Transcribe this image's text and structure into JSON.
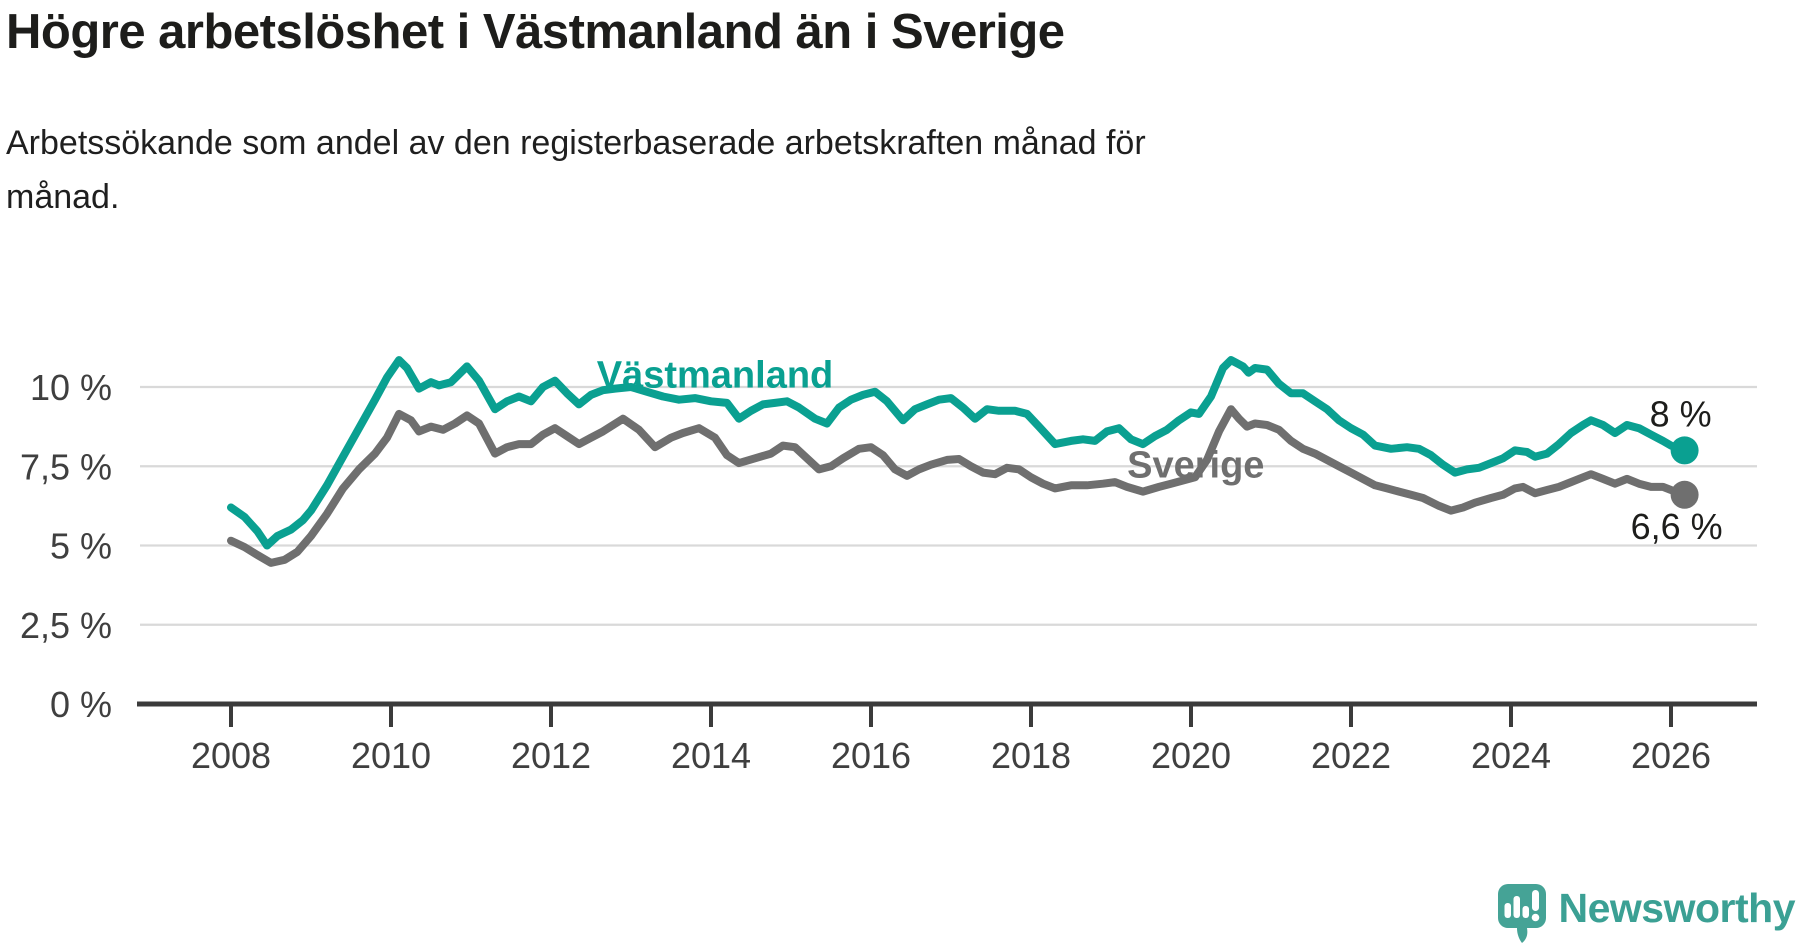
{
  "header": {
    "title": "Högre arbetslöshet i Västmanland än i Sverige",
    "subtitle_line1": "Arbetssökande som andel av den registerbaserade arbetskraften månad för",
    "subtitle_line2": "månad."
  },
  "footer": {
    "brand": "Newsworthy",
    "brand_color": "#3ba094"
  },
  "colors": {
    "vastmanland": "#0aa091",
    "sverige": "#6f6f6f",
    "gridline": "#d9d9d9",
    "axis": "#3b3b3b",
    "axis_text": "#3f3f3f",
    "annotation_text": "#1d1d1b"
  },
  "chart_data": {
    "type": "line",
    "title": "Högre arbetslöshet i Västmanland än i Sverige",
    "subtitle": "Arbetssökande som andel av den registerbaserade arbetskraften månad för månad.",
    "grid": "horizontal",
    "x_axis": {
      "range": [
        2008,
        2027.1
      ],
      "ticks": [
        2008,
        2010,
        2012,
        2014,
        2016,
        2018,
        2020,
        2022,
        2024,
        2026
      ]
    },
    "y_axis": {
      "unit": "%",
      "range": [
        0,
        11
      ],
      "ticks": [
        {
          "value": 0,
          "label": "0 %"
        },
        {
          "value": 2.5,
          "label": "2,5 %"
        },
        {
          "value": 5,
          "label": "5 %"
        },
        {
          "value": 7.5,
          "label": "7,5 %"
        },
        {
          "value": 10,
          "label": "10 %"
        }
      ]
    },
    "series_labels": [
      {
        "text": "Västmanland",
        "x": 2014.05,
        "y": 10.4,
        "color": "#0aa091"
      },
      {
        "text": "Sverige",
        "x": 2020.06,
        "y": 7.55,
        "color": "#6f6f6f"
      }
    ],
    "series": [
      {
        "name": "Västmanland",
        "color": "#0aa091",
        "end_label": "8 %",
        "end_value": 8.0,
        "points": [
          [
            2008.0,
            6.2
          ],
          [
            2008.17,
            5.9
          ],
          [
            2008.33,
            5.45
          ],
          [
            2008.45,
            5.0
          ],
          [
            2008.58,
            5.3
          ],
          [
            2008.75,
            5.5
          ],
          [
            2008.9,
            5.8
          ],
          [
            2009.0,
            6.1
          ],
          [
            2009.2,
            6.9
          ],
          [
            2009.4,
            7.8
          ],
          [
            2009.6,
            8.7
          ],
          [
            2009.8,
            9.6
          ],
          [
            2009.95,
            10.3
          ],
          [
            2010.1,
            10.85
          ],
          [
            2010.2,
            10.6
          ],
          [
            2010.35,
            9.95
          ],
          [
            2010.5,
            10.15
          ],
          [
            2010.6,
            10.05
          ],
          [
            2010.75,
            10.15
          ],
          [
            2010.95,
            10.65
          ],
          [
            2011.1,
            10.2
          ],
          [
            2011.3,
            9.3
          ],
          [
            2011.45,
            9.55
          ],
          [
            2011.6,
            9.7
          ],
          [
            2011.75,
            9.55
          ],
          [
            2011.9,
            10.0
          ],
          [
            2012.05,
            10.2
          ],
          [
            2012.2,
            9.8
          ],
          [
            2012.35,
            9.45
          ],
          [
            2012.5,
            9.75
          ],
          [
            2012.65,
            9.9
          ],
          [
            2012.8,
            9.95
          ],
          [
            2013.0,
            10.0
          ],
          [
            2013.2,
            9.85
          ],
          [
            2013.4,
            9.7
          ],
          [
            2013.6,
            9.6
          ],
          [
            2013.8,
            9.65
          ],
          [
            2014.0,
            9.55
          ],
          [
            2014.2,
            9.5
          ],
          [
            2014.35,
            9.0
          ],
          [
            2014.5,
            9.25
          ],
          [
            2014.65,
            9.45
          ],
          [
            2014.8,
            9.5
          ],
          [
            2014.95,
            9.55
          ],
          [
            2015.1,
            9.35
          ],
          [
            2015.3,
            9.0
          ],
          [
            2015.45,
            8.85
          ],
          [
            2015.6,
            9.35
          ],
          [
            2015.75,
            9.6
          ],
          [
            2015.9,
            9.75
          ],
          [
            2016.05,
            9.85
          ],
          [
            2016.2,
            9.55
          ],
          [
            2016.4,
            8.95
          ],
          [
            2016.55,
            9.3
          ],
          [
            2016.7,
            9.45
          ],
          [
            2016.85,
            9.6
          ],
          [
            2017.0,
            9.65
          ],
          [
            2017.15,
            9.35
          ],
          [
            2017.3,
            9.0
          ],
          [
            2017.45,
            9.3
          ],
          [
            2017.6,
            9.25
          ],
          [
            2017.8,
            9.25
          ],
          [
            2017.95,
            9.15
          ],
          [
            2018.1,
            8.75
          ],
          [
            2018.3,
            8.2
          ],
          [
            2018.5,
            8.3
          ],
          [
            2018.65,
            8.35
          ],
          [
            2018.8,
            8.3
          ],
          [
            2018.95,
            8.6
          ],
          [
            2019.1,
            8.7
          ],
          [
            2019.25,
            8.35
          ],
          [
            2019.4,
            8.2
          ],
          [
            2019.55,
            8.45
          ],
          [
            2019.7,
            8.65
          ],
          [
            2019.85,
            8.95
          ],
          [
            2020.0,
            9.2
          ],
          [
            2020.1,
            9.15
          ],
          [
            2020.25,
            9.7
          ],
          [
            2020.4,
            10.6
          ],
          [
            2020.5,
            10.85
          ],
          [
            2020.65,
            10.65
          ],
          [
            2020.72,
            10.45
          ],
          [
            2020.8,
            10.6
          ],
          [
            2020.95,
            10.55
          ],
          [
            2021.1,
            10.1
          ],
          [
            2021.25,
            9.8
          ],
          [
            2021.4,
            9.8
          ],
          [
            2021.55,
            9.55
          ],
          [
            2021.7,
            9.3
          ],
          [
            2021.85,
            8.95
          ],
          [
            2022.0,
            8.7
          ],
          [
            2022.15,
            8.5
          ],
          [
            2022.3,
            8.15
          ],
          [
            2022.5,
            8.05
          ],
          [
            2022.7,
            8.1
          ],
          [
            2022.85,
            8.05
          ],
          [
            2023.0,
            7.85
          ],
          [
            2023.15,
            7.55
          ],
          [
            2023.3,
            7.3
          ],
          [
            2023.45,
            7.4
          ],
          [
            2023.6,
            7.45
          ],
          [
            2023.75,
            7.6
          ],
          [
            2023.9,
            7.75
          ],
          [
            2024.05,
            8.0
          ],
          [
            2024.2,
            7.95
          ],
          [
            2024.3,
            7.8
          ],
          [
            2024.45,
            7.9
          ],
          [
            2024.6,
            8.2
          ],
          [
            2024.75,
            8.55
          ],
          [
            2024.9,
            8.8
          ],
          [
            2025.0,
            8.95
          ],
          [
            2025.15,
            8.8
          ],
          [
            2025.3,
            8.55
          ],
          [
            2025.45,
            8.8
          ],
          [
            2025.6,
            8.7
          ],
          [
            2025.75,
            8.5
          ],
          [
            2025.9,
            8.3
          ],
          [
            2026.0,
            8.15
          ],
          [
            2026.17,
            8.0
          ]
        ]
      },
      {
        "name": "Sverige",
        "color": "#6f6f6f",
        "end_label": "6,6 %",
        "end_value": 6.6,
        "points": [
          [
            2008.0,
            5.15
          ],
          [
            2008.17,
            4.95
          ],
          [
            2008.33,
            4.7
          ],
          [
            2008.5,
            4.45
          ],
          [
            2008.67,
            4.55
          ],
          [
            2008.83,
            4.8
          ],
          [
            2009.0,
            5.3
          ],
          [
            2009.2,
            6.0
          ],
          [
            2009.4,
            6.8
          ],
          [
            2009.6,
            7.4
          ],
          [
            2009.8,
            7.9
          ],
          [
            2009.95,
            8.4
          ],
          [
            2010.1,
            9.15
          ],
          [
            2010.25,
            8.95
          ],
          [
            2010.35,
            8.6
          ],
          [
            2010.5,
            8.75
          ],
          [
            2010.65,
            8.65
          ],
          [
            2010.8,
            8.85
          ],
          [
            2010.95,
            9.1
          ],
          [
            2011.1,
            8.85
          ],
          [
            2011.3,
            7.9
          ],
          [
            2011.45,
            8.1
          ],
          [
            2011.6,
            8.2
          ],
          [
            2011.75,
            8.2
          ],
          [
            2011.9,
            8.5
          ],
          [
            2012.05,
            8.7
          ],
          [
            2012.2,
            8.45
          ],
          [
            2012.35,
            8.2
          ],
          [
            2012.5,
            8.4
          ],
          [
            2012.65,
            8.6
          ],
          [
            2012.9,
            9.0
          ],
          [
            2013.1,
            8.65
          ],
          [
            2013.3,
            8.1
          ],
          [
            2013.5,
            8.4
          ],
          [
            2013.65,
            8.55
          ],
          [
            2013.85,
            8.7
          ],
          [
            2014.05,
            8.4
          ],
          [
            2014.2,
            7.85
          ],
          [
            2014.35,
            7.6
          ],
          [
            2014.55,
            7.75
          ],
          [
            2014.75,
            7.9
          ],
          [
            2014.9,
            8.15
          ],
          [
            2015.05,
            8.1
          ],
          [
            2015.2,
            7.75
          ],
          [
            2015.35,
            7.4
          ],
          [
            2015.5,
            7.5
          ],
          [
            2015.65,
            7.75
          ],
          [
            2015.85,
            8.05
          ],
          [
            2016.0,
            8.1
          ],
          [
            2016.15,
            7.85
          ],
          [
            2016.3,
            7.4
          ],
          [
            2016.45,
            7.2
          ],
          [
            2016.6,
            7.4
          ],
          [
            2016.75,
            7.55
          ],
          [
            2016.95,
            7.7
          ],
          [
            2017.1,
            7.73
          ],
          [
            2017.25,
            7.5
          ],
          [
            2017.4,
            7.3
          ],
          [
            2017.55,
            7.25
          ],
          [
            2017.7,
            7.45
          ],
          [
            2017.85,
            7.4
          ],
          [
            2018.0,
            7.15
          ],
          [
            2018.15,
            6.95
          ],
          [
            2018.3,
            6.8
          ],
          [
            2018.5,
            6.9
          ],
          [
            2018.7,
            6.9
          ],
          [
            2018.9,
            6.95
          ],
          [
            2019.05,
            7.0
          ],
          [
            2019.2,
            6.85
          ],
          [
            2019.4,
            6.7
          ],
          [
            2019.6,
            6.85
          ],
          [
            2019.75,
            6.95
          ],
          [
            2019.9,
            7.05
          ],
          [
            2020.05,
            7.15
          ],
          [
            2020.2,
            7.7
          ],
          [
            2020.35,
            8.6
          ],
          [
            2020.5,
            9.3
          ],
          [
            2020.6,
            9.0
          ],
          [
            2020.7,
            8.75
          ],
          [
            2020.8,
            8.85
          ],
          [
            2020.95,
            8.8
          ],
          [
            2021.1,
            8.65
          ],
          [
            2021.25,
            8.3
          ],
          [
            2021.4,
            8.05
          ],
          [
            2021.55,
            7.9
          ],
          [
            2021.7,
            7.7
          ],
          [
            2021.85,
            7.5
          ],
          [
            2022.0,
            7.3
          ],
          [
            2022.15,
            7.1
          ],
          [
            2022.3,
            6.9
          ],
          [
            2022.45,
            6.8
          ],
          [
            2022.6,
            6.7
          ],
          [
            2022.75,
            6.6
          ],
          [
            2022.9,
            6.5
          ],
          [
            2023.1,
            6.25
          ],
          [
            2023.25,
            6.1
          ],
          [
            2023.4,
            6.2
          ],
          [
            2023.55,
            6.35
          ],
          [
            2023.75,
            6.5
          ],
          [
            2023.9,
            6.6
          ],
          [
            2024.05,
            6.8
          ],
          [
            2024.15,
            6.85
          ],
          [
            2024.3,
            6.65
          ],
          [
            2024.45,
            6.75
          ],
          [
            2024.6,
            6.85
          ],
          [
            2024.75,
            7.0
          ],
          [
            2024.9,
            7.15
          ],
          [
            2025.0,
            7.25
          ],
          [
            2025.15,
            7.1
          ],
          [
            2025.3,
            6.95
          ],
          [
            2025.45,
            7.1
          ],
          [
            2025.6,
            6.95
          ],
          [
            2025.75,
            6.85
          ],
          [
            2025.9,
            6.85
          ],
          [
            2026.0,
            6.75
          ],
          [
            2026.17,
            6.6
          ]
        ]
      }
    ]
  }
}
